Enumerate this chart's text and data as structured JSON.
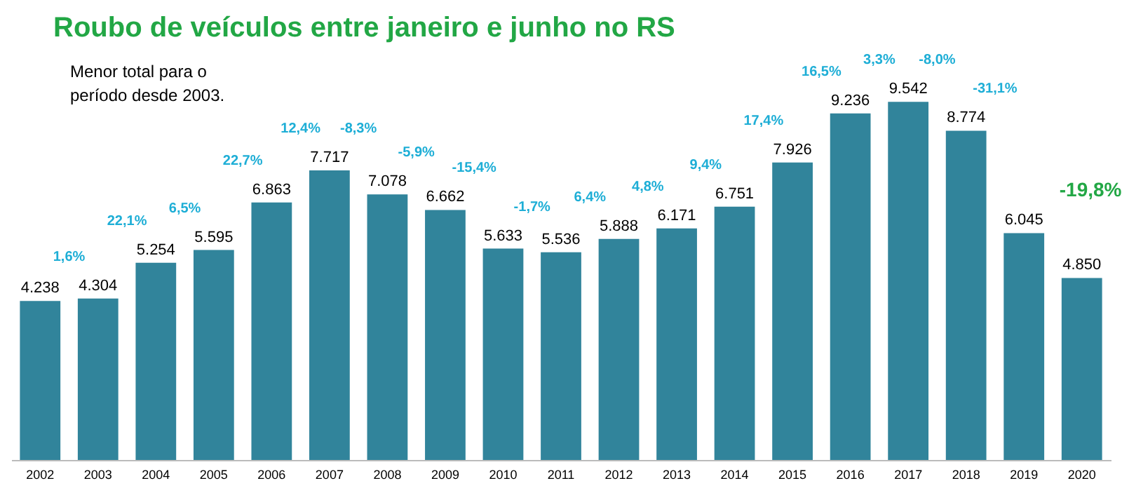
{
  "chart_data": {
    "type": "bar",
    "title": "Roubo de veículos entre janeiro e junho no RS",
    "subtitle": "Menor total para o\nperíodo desde 2003.",
    "categories": [
      "2002",
      "2003",
      "2004",
      "2005",
      "2006",
      "2007",
      "2008",
      "2009",
      "2010",
      "2011",
      "2012",
      "2013",
      "2014",
      "2015",
      "2016",
      "2017",
      "2018",
      "2019",
      "2020"
    ],
    "values": [
      4238,
      4304,
      5254,
      5595,
      6863,
      7717,
      7078,
      6662,
      5633,
      5536,
      5888,
      6171,
      6751,
      7926,
      9236,
      9542,
      8774,
      6045,
      4850
    ],
    "value_labels": [
      "4.238",
      "4.304",
      "5.254",
      "5.595",
      "6.863",
      "7.717",
      "7.078",
      "6.662",
      "5.633",
      "5.536",
      "5.888",
      "6.171",
      "6.751",
      "7.926",
      "9.236",
      "9.542",
      "8.774",
      "6.045",
      "4.850"
    ],
    "color": "#31849b",
    "annotations": [
      "1,6%",
      "22,1%",
      "6,5%",
      "22,7%",
      "12,4%",
      "-8,3%",
      "-5,9%",
      "-15,4%",
      "-1,7%",
      "6,4%",
      "4,8%",
      "9,4%",
      "17,4%",
      "16,5%",
      "3,3%",
      "-8,0%",
      "-31,1%",
      "-19,8%"
    ],
    "grid": false
  }
}
